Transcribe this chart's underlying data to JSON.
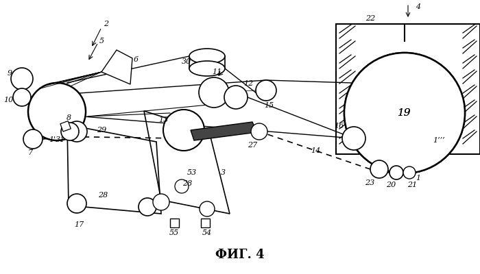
{
  "title": "ФИГ. 4",
  "bg_color": "#ffffff",
  "lc": "#000000",
  "title_fontsize": 13,
  "fs": 8
}
